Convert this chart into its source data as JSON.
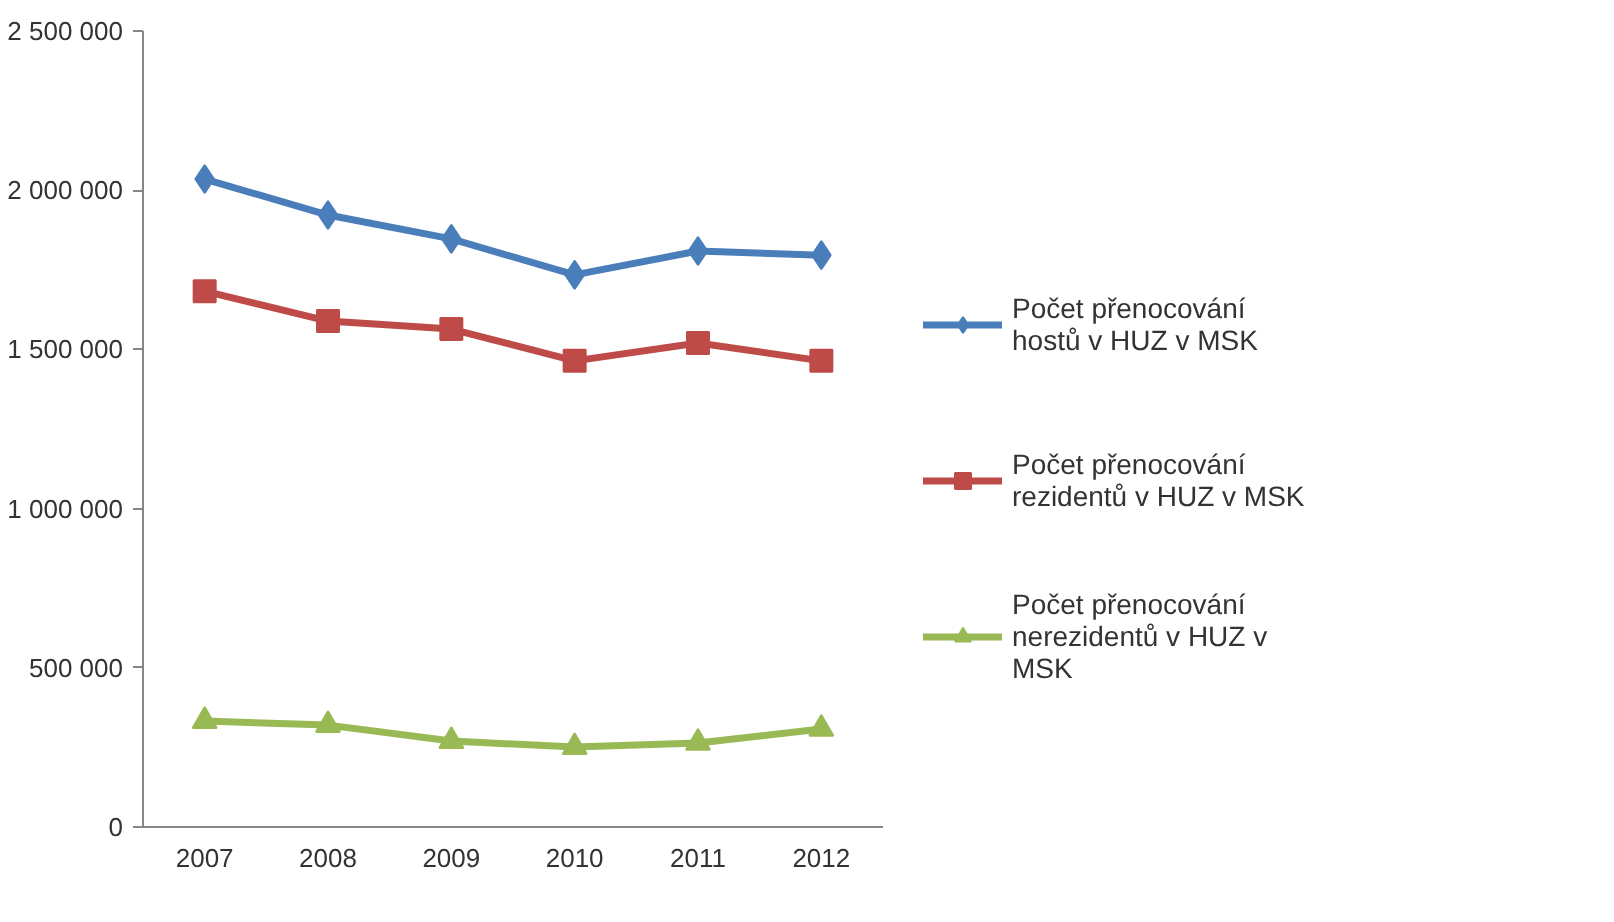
{
  "chart_data": {
    "type": "line",
    "categories": [
      "2007",
      "2008",
      "2009",
      "2010",
      "2011",
      "2012"
    ],
    "series": [
      {
        "name": "Počet přenocování hostů v HUZ v MSK",
        "color": "#4a7ebb",
        "marker": "diamond",
        "values": [
          2035000,
          1922000,
          1847000,
          1734000,
          1809000,
          1796000
        ]
      },
      {
        "name": "Počet přenocování rezidentů v HUZ v MSK",
        "color": "#be4b48",
        "marker": "square",
        "values": [
          1683000,
          1589000,
          1564000,
          1464000,
          1520000,
          1464000
        ]
      },
      {
        "name": "Počet přenocování nerezidentů v HUZ v MSK",
        "color": "#98b954",
        "marker": "triangle",
        "values": [
          333000,
          320000,
          270000,
          251000,
          264000,
          308000
        ]
      }
    ],
    "ylim": [
      0,
      2500000
    ],
    "yticks": [
      {
        "value": 0,
        "label": "0"
      },
      {
        "value": 500000,
        "label": "500 000"
      },
      {
        "value": 1000000,
        "label": "1 000 000"
      },
      {
        "value": 1500000,
        "label": "1 500 000"
      },
      {
        "value": 2000000,
        "label": "2 000 000"
      },
      {
        "value": 2500000,
        "label": "2 500 000"
      }
    ],
    "grid": false,
    "legend": "right",
    "line_style": "solid"
  }
}
